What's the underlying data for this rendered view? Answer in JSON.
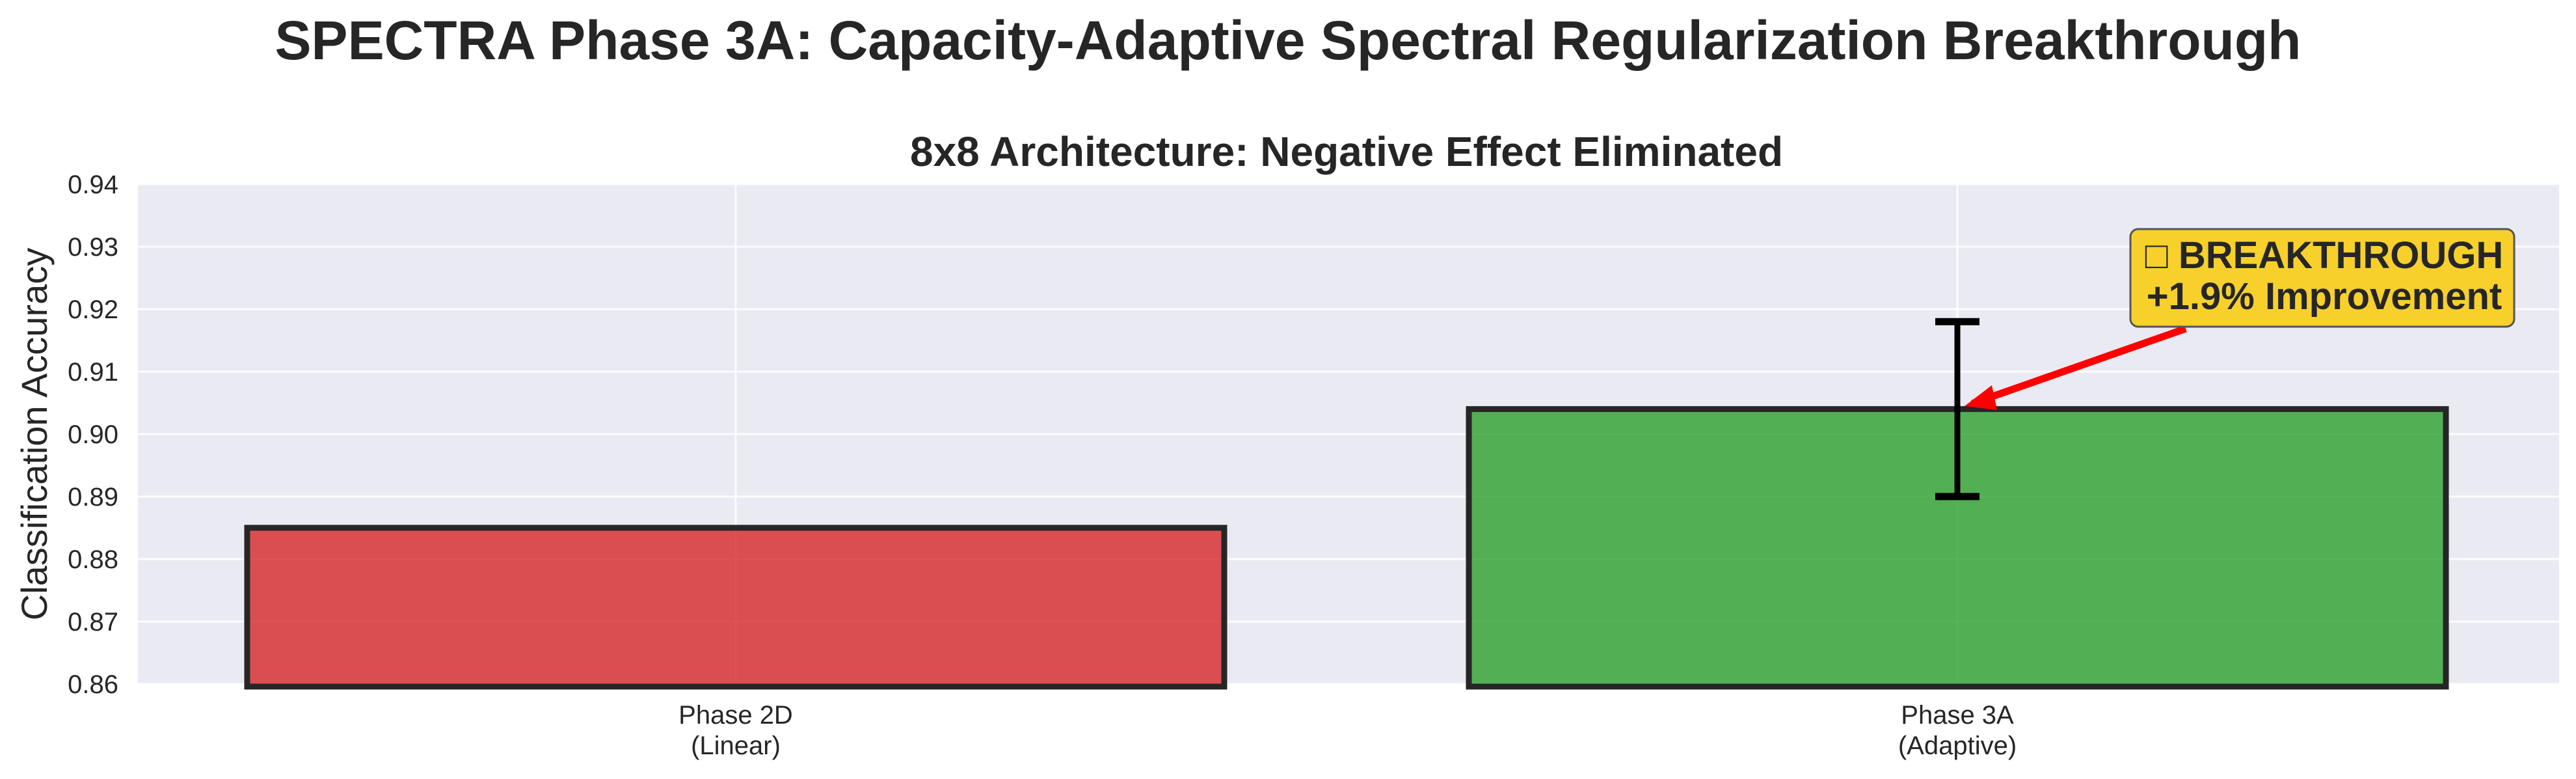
{
  "figure_title": "SPECTRA Phase 3A: Capacity-Adaptive Spectral Regularization Breakthrough",
  "chart_data": {
    "type": "bar",
    "title": "8x8 Architecture: Negative Effect Eliminated",
    "ylabel": "Classification Accuracy",
    "xlabel": "",
    "ylim": [
      0.86,
      0.94
    ],
    "yticks": [
      0.86,
      0.87,
      0.88,
      0.89,
      0.9,
      0.91,
      0.92,
      0.93,
      0.94
    ],
    "ytick_labels": [
      "0.86",
      "0.87",
      "0.88",
      "0.89",
      "0.90",
      "0.91",
      "0.92",
      "0.93",
      "0.94"
    ],
    "categories": [
      {
        "line1": "Phase 2D",
        "line2": "(Linear)"
      },
      {
        "line1": "Phase 3A",
        "line2": "(Adaptive)"
      }
    ],
    "values": [
      0.885,
      0.904
    ],
    "errors": [
      null,
      0.014
    ],
    "bar_colors": [
      "#d62728",
      "#2ca02c"
    ],
    "grid": true,
    "annotation": {
      "line1": "□ BREAKTHROUGH",
      "line2": "+1.9% Improvement",
      "target_bar": 1,
      "arrow_color": "#ff0000",
      "box_color": "#f7d02c"
    }
  }
}
